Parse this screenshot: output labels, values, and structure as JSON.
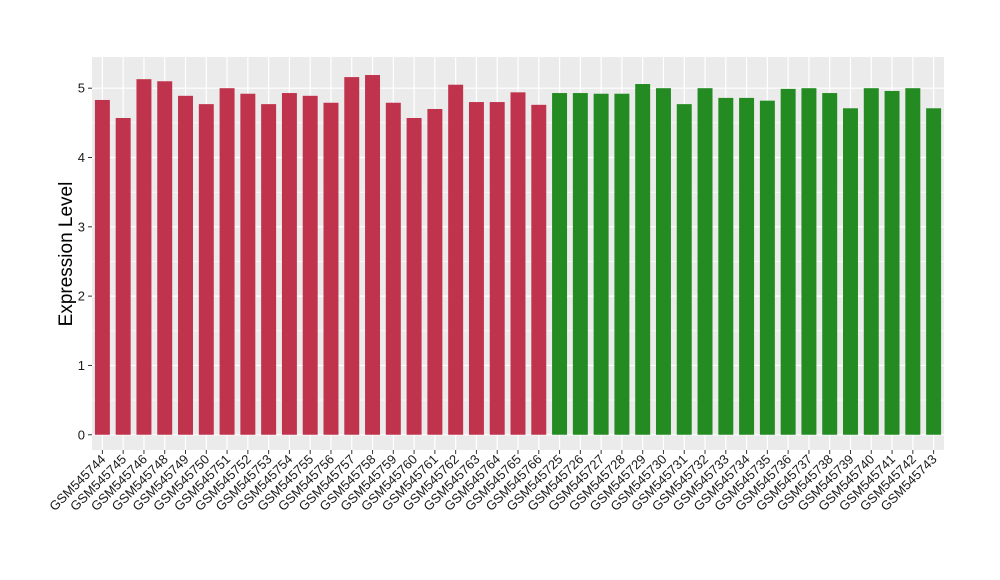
{
  "chart_data": {
    "type": "bar",
    "title": "",
    "xlabel": "",
    "ylabel": "Expression Level",
    "ylim": [
      -0.22,
      5.45
    ],
    "yticks": [
      0,
      1,
      2,
      3,
      4,
      5
    ],
    "grid": true,
    "legend": "none",
    "categories": [
      "GSM545744",
      "GSM545745",
      "GSM545746",
      "GSM545748",
      "GSM545749",
      "GSM545750",
      "GSM545751",
      "GSM545752",
      "GSM545753",
      "GSM545754",
      "GSM545755",
      "GSM545756",
      "GSM545757",
      "GSM545758",
      "GSM545759",
      "GSM545760",
      "GSM545761",
      "GSM545762",
      "GSM545763",
      "GSM545764",
      "GSM545765",
      "GSM545766",
      "GSM545725",
      "GSM545726",
      "GSM545727",
      "GSM545728",
      "GSM545729",
      "GSM545730",
      "GSM545731",
      "GSM545732",
      "GSM545733",
      "GSM545734",
      "GSM545735",
      "GSM545736",
      "GSM545737",
      "GSM545738",
      "GSM545739",
      "GSM545740",
      "GSM545741",
      "GSM545742",
      "GSM545743"
    ],
    "values": [
      4.83,
      4.57,
      5.13,
      5.1,
      4.89,
      4.77,
      5.0,
      4.92,
      4.77,
      4.93,
      4.89,
      4.79,
      5.16,
      5.19,
      4.79,
      4.57,
      4.7,
      5.05,
      4.8,
      4.8,
      4.94,
      4.76,
      4.93,
      4.93,
      4.92,
      4.92,
      5.06,
      5.0,
      4.77,
      5.0,
      4.86,
      4.86,
      4.82,
      4.99,
      5.0,
      4.93,
      4.71,
      5.0,
      4.96,
      5.0,
      4.71
    ],
    "groups": [
      0,
      0,
      0,
      0,
      0,
      0,
      0,
      0,
      0,
      0,
      0,
      0,
      0,
      0,
      0,
      0,
      0,
      0,
      0,
      0,
      0,
      0,
      1,
      1,
      1,
      1,
      1,
      1,
      1,
      1,
      1,
      1,
      1,
      1,
      1,
      1,
      1,
      1,
      1,
      1,
      1
    ],
    "colors": [
      "#c0334d",
      "#238b22"
    ],
    "panel_background": "#ebebeb",
    "grid_color": "#ffffff"
  }
}
